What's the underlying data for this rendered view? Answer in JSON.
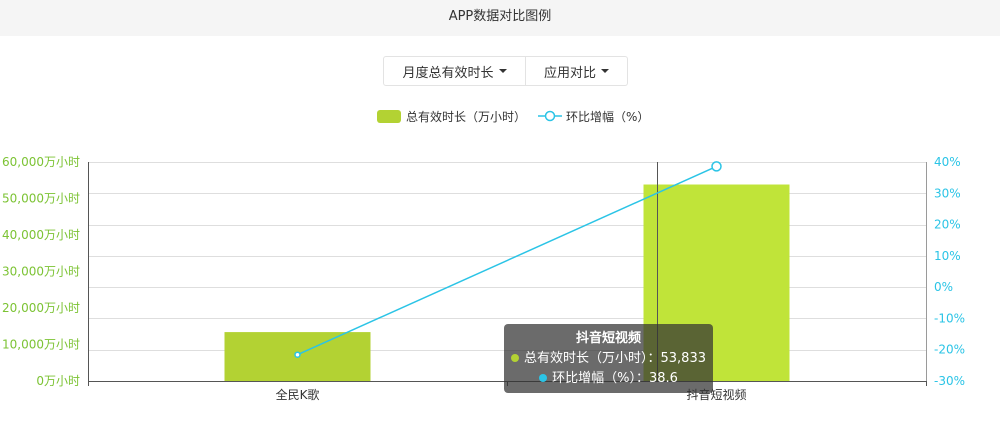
{
  "header": {
    "title": "APP数据对比图例"
  },
  "controls": [
    {
      "label": "月度总有效时长",
      "icon": "caret-down-icon"
    },
    {
      "label": "应用对比",
      "icon": "caret-down-icon"
    }
  ],
  "chart_data": {
    "type": "bar",
    "title": "",
    "categories": [
      "全民K歌",
      "抖音短视频"
    ],
    "series": [
      {
        "name": "总有效时长（万小时）",
        "type": "bar",
        "y_axis": "left",
        "values": [
          13400,
          53833
        ],
        "color": "#b3d233",
        "emphasis_color": "#c0e439"
      },
      {
        "name": "环比增幅（%）",
        "type": "line",
        "y_axis": "right",
        "values": [
          -21.6,
          38.6
        ],
        "color": "#2bc4e6"
      }
    ],
    "y_left": {
      "range": [
        0,
        60000
      ],
      "tick_values": [
        0,
        10000,
        20000,
        30000,
        40000,
        50000,
        60000
      ],
      "tick_labels": [
        "0万小时",
        "10,000万小时",
        "20,000万小时",
        "30,000万小时",
        "40,000万小时",
        "50,000万小时",
        "60,000万小时"
      ],
      "label_color": "#7cc334"
    },
    "y_right": {
      "range": [
        -30,
        40
      ],
      "tick_values": [
        -30,
        -20,
        -10,
        0,
        10,
        20,
        30,
        40
      ],
      "tick_labels": [
        "-30%",
        "-20%",
        "-10%",
        "0%",
        "10%",
        "20%",
        "30%",
        "40%"
      ],
      "label_color": "#2bc4e6"
    },
    "grid": true,
    "legend_position": "top-center",
    "highlighted_index": 1,
    "tooltip": {
      "title": "抖音短视频",
      "rows": [
        {
          "text": "总有效时长（万小时）：53,833",
          "color": "#b3d233"
        },
        {
          "text": "环比增幅（%）：38.6",
          "color": "#2bc4e6"
        }
      ]
    }
  }
}
